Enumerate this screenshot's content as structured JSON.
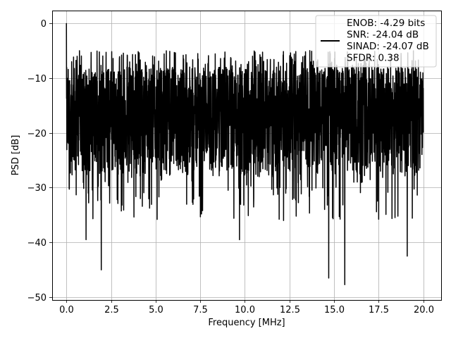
{
  "chart_data": {
    "type": "line",
    "xlabel": "Frequency [MHz]",
    "ylabel": "PSD [dB]",
    "xlim": [
      -0.8,
      21.0
    ],
    "ylim": [
      -50.5,
      2.3
    ],
    "x_ticks": [
      0.0,
      2.5,
      5.0,
      7.5,
      10.0,
      12.5,
      15.0,
      17.5,
      20.0
    ],
    "x_tick_labels": [
      "0.0",
      "2.5",
      "5.0",
      "7.5",
      "10.0",
      "12.5",
      "15.0",
      "17.5",
      "20.0"
    ],
    "y_ticks": [
      0,
      -10,
      -20,
      -30,
      -40,
      -50
    ],
    "y_tick_labels": [
      "0",
      "−10",
      "−20",
      "−30",
      "−40",
      "−50"
    ],
    "grid": true,
    "legend_placement": "top-right",
    "legend": {
      "lines": [
        "ENOB: -4.29 bits",
        "SNR: -24.04 dB",
        "SINAD: -24.07 dB",
        "SFDR: 0.38"
      ]
    },
    "series": [
      {
        "color": "#000000",
        "x_range": [
          0.0,
          20.0
        ],
        "envelope": {
          "peak_start": 0.0,
          "typical_range": [
            -28,
            -8
          ],
          "notable_minima": [
            {
              "x": 1.1,
              "y": -39.5
            },
            {
              "x": 1.95,
              "y": -45.0
            },
            {
              "x": 9.7,
              "y": -39.5
            },
            {
              "x": 14.7,
              "y": -46.5
            },
            {
              "x": 15.6,
              "y": -47.7
            },
            {
              "x": 19.1,
              "y": -42.5
            }
          ]
        }
      }
    ]
  }
}
